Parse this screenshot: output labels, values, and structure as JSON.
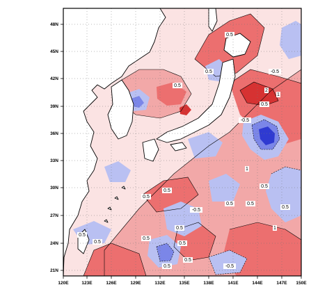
{
  "map": {
    "lat_labels": [
      "48N",
      "45N",
      "42N",
      "39N",
      "36N",
      "33N",
      "30N",
      "27N",
      "24N",
      "21N"
    ],
    "lon_labels": [
      "120E",
      "123E",
      "126E",
      "129E",
      "132E",
      "135E",
      "138E",
      "141E",
      "144E",
      "147E",
      "150E"
    ],
    "contour_labels": [
      "0.5",
      "0.5",
      "0.5",
      "1",
      "1",
      "1",
      "2",
      "0.5",
      "0.5",
      "0.5",
      "0.5",
      "-0.5",
      "-0.5",
      "0.5",
      "0.5",
      "0.5",
      "-0.5",
      "0.5",
      "0.5",
      "0.5",
      "0.5",
      "0.5",
      "-0.5",
      "0.5",
      "0.5"
    ],
    "colors": {
      "positive_light": "#f2a8a8",
      "positive_mid": "#ec6f6f",
      "positive_strong": "#d63232",
      "negative_light": "#b9c0f2",
      "negative_mid": "#7b86e8",
      "negative_strong": "#2f3ad1",
      "land": "#ffffff",
      "coast": "#000000"
    }
  }
}
